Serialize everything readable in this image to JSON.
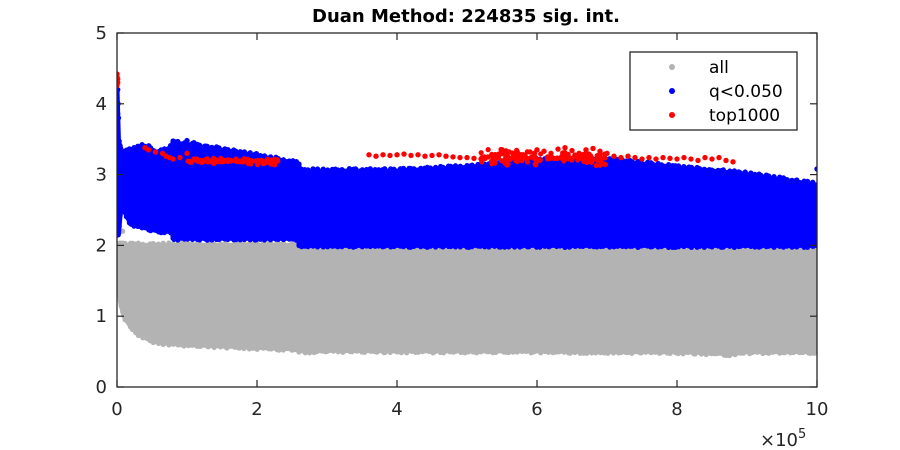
{
  "chart_data": {
    "type": "scatter",
    "title": "Duan Method: 224835 sig. int.",
    "xlabel": "",
    "ylabel": "",
    "x_exponent_label": "×10",
    "x_exponent_power": "5",
    "xlim": [
      0,
      1000000
    ],
    "ylim": [
      0,
      5
    ],
    "x_ticks": [
      {
        "value": 0,
        "label": "0"
      },
      {
        "value": 200000,
        "label": "2"
      },
      {
        "value": 400000,
        "label": "4"
      },
      {
        "value": 600000,
        "label": "6"
      },
      {
        "value": 800000,
        "label": "8"
      },
      {
        "value": 1000000,
        "label": "10"
      }
    ],
    "y_ticks": [
      {
        "value": 0,
        "label": "0"
      },
      {
        "value": 1,
        "label": "1"
      },
      {
        "value": 2,
        "label": "2"
      },
      {
        "value": 3,
        "label": "3"
      },
      {
        "value": 4,
        "label": "4"
      },
      {
        "value": 5,
        "label": "5"
      }
    ],
    "grid": false,
    "legend_position": "top-right",
    "series": [
      {
        "name": "all",
        "color": "#b3b3b3",
        "region": {
          "x": [
            0,
            2000,
            5000,
            10000,
            20000,
            30000,
            50000,
            70000,
            100000,
            150000,
            200000,
            250000,
            270000,
            300000,
            400000,
            500000,
            600000,
            700000,
            800000,
            880000,
            900000,
            1000000
          ],
          "lower": [
            1.8,
            1.5,
            1.2,
            1.0,
            0.85,
            0.75,
            0.65,
            0.62,
            0.6,
            0.58,
            0.56,
            0.54,
            0.5,
            0.52,
            0.51,
            0.51,
            0.51,
            0.5,
            0.5,
            0.47,
            0.5,
            0.5
          ],
          "upper": [
            2.0,
            2.0,
            2.0,
            2.0,
            2.0,
            2.0,
            2.0,
            2.0,
            2.0,
            2.0,
            2.0,
            2.0,
            2.0,
            2.0,
            2.0,
            2.0,
            2.0,
            2.0,
            2.0,
            2.0,
            2.0,
            2.0
          ]
        },
        "points": [
          [
            0,
            3.7
          ],
          [
            0,
            3.3
          ],
          [
            1000,
            2.9
          ],
          [
            2000,
            2.6
          ],
          [
            3000,
            2.4
          ],
          [
            8000,
            2.2
          ]
        ]
      },
      {
        "name": "q<0.050",
        "color": "#0000ff",
        "region": {
          "x": [
            0,
            2000,
            5000,
            10000,
            20000,
            40000,
            60000,
            80000,
            80001,
            180000,
            260000,
            260001,
            400000,
            500000,
            600000,
            700000,
            800000,
            900000,
            1000000
          ],
          "lower": [
            2.2,
            2.15,
            2.5,
            2.5,
            2.3,
            2.25,
            2.2,
            2.2,
            2.1,
            2.1,
            2.1,
            2.0,
            2.0,
            2.0,
            2.0,
            2.0,
            2.0,
            2.0,
            2.0
          ],
          "upper": [
            4.2,
            3.5,
            3.35,
            3.3,
            3.35,
            3.4,
            3.3,
            3.4,
            3.45,
            3.3,
            3.15,
            3.05,
            3.05,
            3.1,
            3.2,
            3.2,
            3.1,
            3.0,
            2.85
          ]
        },
        "points": [
          [
            1000,
            4.2
          ],
          [
            1500,
            4.0
          ],
          [
            2000,
            3.8
          ],
          [
            85000,
            3.45
          ],
          [
            100000,
            3.48
          ],
          [
            110000,
            3.45
          ],
          [
            1000000,
            3.08
          ]
        ]
      },
      {
        "name": "top1000",
        "color": "#ff0000",
        "points": [
          [
            0,
            4.42
          ],
          [
            0,
            4.38
          ],
          [
            0,
            4.32
          ],
          [
            0,
            4.26
          ],
          [
            1000,
            4.35
          ],
          [
            1000,
            4.3
          ],
          [
            40000,
            3.38
          ],
          [
            45000,
            3.35
          ],
          [
            55000,
            3.32
          ],
          [
            65000,
            3.3
          ],
          [
            70000,
            3.26
          ],
          [
            75000,
            3.24
          ],
          [
            80000,
            3.22
          ],
          [
            90000,
            3.24
          ],
          [
            100000,
            3.3
          ],
          [
            110000,
            3.22
          ],
          [
            120000,
            3.2
          ],
          [
            130000,
            3.18
          ],
          [
            140000,
            3.2
          ],
          [
            150000,
            3.18
          ],
          [
            160000,
            3.2
          ],
          [
            170000,
            3.22
          ],
          [
            180000,
            3.18
          ],
          [
            190000,
            3.17
          ],
          [
            200000,
            3.18
          ],
          [
            210000,
            3.16
          ],
          [
            220000,
            3.15
          ],
          [
            225000,
            3.14
          ],
          [
            360000,
            3.28
          ],
          [
            370000,
            3.26
          ],
          [
            380000,
            3.28
          ],
          [
            390000,
            3.27
          ],
          [
            400000,
            3.28
          ],
          [
            410000,
            3.29
          ],
          [
            420000,
            3.27
          ],
          [
            430000,
            3.28
          ],
          [
            440000,
            3.26
          ],
          [
            450000,
            3.27
          ],
          [
            460000,
            3.28
          ],
          [
            470000,
            3.26
          ],
          [
            480000,
            3.25
          ],
          [
            490000,
            3.24
          ],
          [
            500000,
            3.24
          ],
          [
            510000,
            3.23
          ],
          [
            520000,
            3.22
          ],
          [
            530000,
            3.25
          ],
          [
            540000,
            3.28
          ],
          [
            550000,
            3.3
          ],
          [
            560000,
            3.32
          ],
          [
            570000,
            3.3
          ],
          [
            580000,
            3.28
          ],
          [
            590000,
            3.32
          ],
          [
            600000,
            3.35
          ],
          [
            610000,
            3.33
          ],
          [
            620000,
            3.3
          ],
          [
            630000,
            3.36
          ],
          [
            640000,
            3.38
          ],
          [
            650000,
            3.34
          ],
          [
            660000,
            3.3
          ],
          [
            670000,
            3.35
          ],
          [
            680000,
            3.37
          ],
          [
            690000,
            3.33
          ],
          [
            700000,
            3.3
          ],
          [
            710000,
            3.26
          ],
          [
            720000,
            3.24
          ],
          [
            730000,
            3.26
          ],
          [
            740000,
            3.24
          ],
          [
            750000,
            3.22
          ],
          [
            760000,
            3.24
          ],
          [
            770000,
            3.22
          ],
          [
            780000,
            3.24
          ],
          [
            790000,
            3.23
          ],
          [
            800000,
            3.22
          ],
          [
            810000,
            3.24
          ],
          [
            820000,
            3.22
          ],
          [
            830000,
            3.2
          ],
          [
            840000,
            3.24
          ],
          [
            850000,
            3.22
          ],
          [
            860000,
            3.24
          ],
          [
            870000,
            3.2
          ],
          [
            880000,
            3.18
          ]
        ],
        "dense_clusters": [
          {
            "x_range": [
              520000,
              700000
            ],
            "y_range": [
              3.1,
              3.38
            ]
          },
          {
            "x_range": [
              100000,
              230000
            ],
            "y_range": [
              3.14,
              3.24
            ]
          }
        ]
      }
    ]
  }
}
